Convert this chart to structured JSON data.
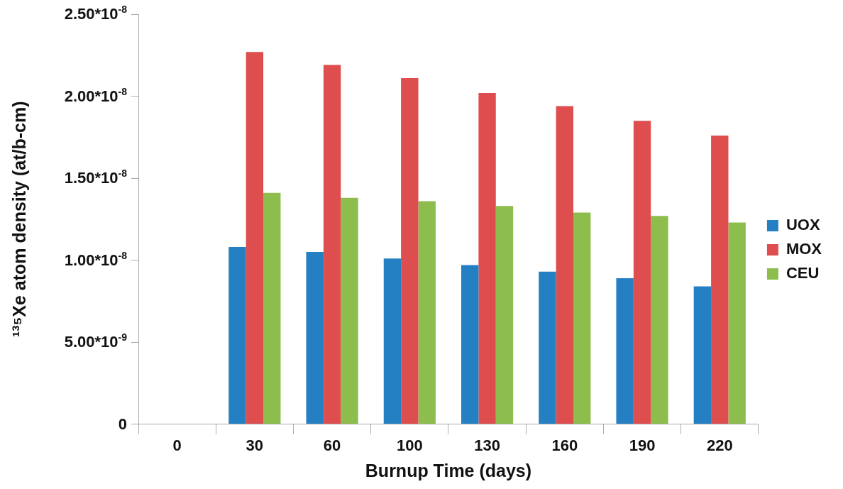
{
  "chart_data": {
    "type": "bar",
    "xlabel": "Burnup Time (days)",
    "ylabel": "¹³⁵Xe atom density (at/b-cm)",
    "categories": [
      "0",
      "30",
      "60",
      "100",
      "130",
      "160",
      "190",
      "220"
    ],
    "series": [
      {
        "name": "UOX",
        "color": "#2580c3",
        "values": [
          0,
          1.08e-08,
          1.05e-08,
          1.01e-08,
          9.7e-09,
          9.3e-09,
          8.9e-09,
          8.4e-09
        ]
      },
      {
        "name": "MOX",
        "color": "#de4e4e",
        "values": [
          0,
          2.27e-08,
          2.19e-08,
          2.11e-08,
          2.02e-08,
          1.94e-08,
          1.85e-08,
          1.76e-08
        ]
      },
      {
        "name": "CEU",
        "color": "#8dbd4d",
        "values": [
          0,
          1.41e-08,
          1.38e-08,
          1.36e-08,
          1.33e-08,
          1.29e-08,
          1.27e-08,
          1.23e-08
        ]
      }
    ],
    "ylim": [
      0,
      2.5e-08
    ],
    "yticks": [
      {
        "value": 0,
        "label": "0"
      },
      {
        "value": 5e-09,
        "label": "5.00*10$^{-9}$"
      },
      {
        "value": 1e-08,
        "label": "1.00*10$^{-8}$"
      },
      {
        "value": 1.5e-08,
        "label": "1.50*10$^{-8}$"
      },
      {
        "value": 2e-08,
        "label": "2.00*10$^{-8}$"
      },
      {
        "value": 2.5e-08,
        "label": "2.50*10$^{-8}$"
      }
    ],
    "grid": false,
    "legend": "right"
  }
}
